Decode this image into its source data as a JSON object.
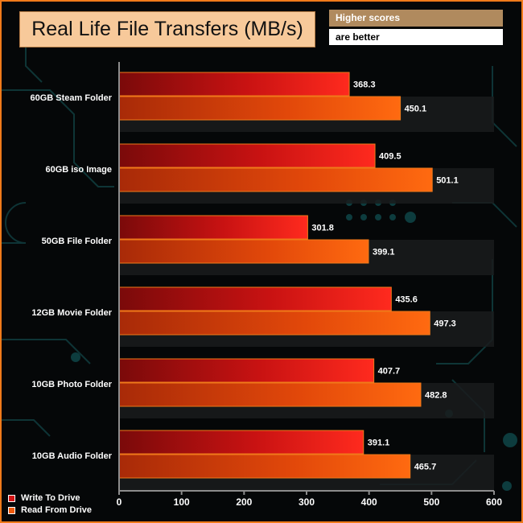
{
  "chart_data": {
    "type": "bar",
    "orientation": "horizontal",
    "title": "Real Life File Transfers (MB/s)",
    "categories": [
      "60GB Steam Folder",
      "60GB iso Image",
      "50GB File Folder",
      "12GB Movie Folder",
      "10GB Photo Folder",
      "10GB Audio Folder"
    ],
    "series": [
      {
        "name": "Write To  Drive",
        "color": "#d41414",
        "values": [
          368.3,
          409.5,
          301.8,
          435.6,
          407.7,
          391.1
        ]
      },
      {
        "name": "Read From  Drive",
        "color": "#f05a0a",
        "values": [
          450.1,
          501.1,
          399.1,
          497.3,
          482.8,
          465.7
        ]
      }
    ],
    "xlim": [
      0,
      600
    ],
    "xticks": [
      "0",
      "100",
      "200",
      "300",
      "400",
      "500",
      "600"
    ],
    "grid": false,
    "legend_position": "bottom-left"
  },
  "notes": {
    "line1": "Higher scores",
    "line2": "are better"
  },
  "colors": {
    "frame": "#f07a1a",
    "title_background": "#f7c99a",
    "note_background": "#b08a5e"
  }
}
